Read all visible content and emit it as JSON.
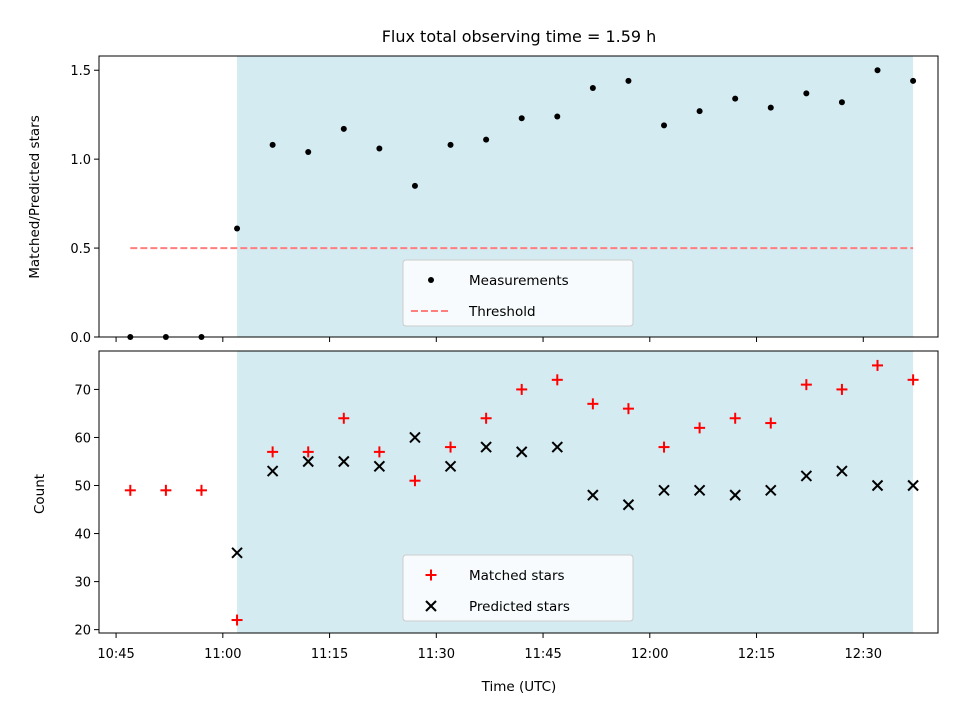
{
  "chart_data": [
    {
      "type": "scatter",
      "title": "Flux total observing time = 1.59 h",
      "ylabel": "Matched/Predicted stars",
      "xlabel": "",
      "ylim": [
        0,
        1.58
      ],
      "yticks": [
        0.0,
        0.5,
        1.0,
        1.5
      ],
      "ytick_labels": [
        "0.0",
        "0.5",
        "1.0",
        "1.5"
      ],
      "shaded_span": {
        "x_start": "11:02",
        "x_end": "12:37",
        "color": "#add8e6"
      },
      "series": [
        {
          "name": "Measurements",
          "marker": "dot",
          "color": "#000000",
          "x": [
            "10:47",
            "10:52",
            "10:57",
            "11:02",
            "11:07",
            "11:12",
            "11:17",
            "11:22",
            "11:27",
            "11:32",
            "11:37",
            "11:42",
            "11:47",
            "11:52",
            "11:57",
            "12:02",
            "12:07",
            "12:12",
            "12:17",
            "12:22",
            "12:27",
            "12:32",
            "12:37"
          ],
          "y": [
            0.0,
            0.0,
            0.0,
            0.61,
            1.08,
            1.04,
            1.17,
            1.06,
            0.85,
            1.08,
            1.11,
            1.23,
            1.24,
            1.4,
            1.44,
            1.19,
            1.27,
            1.34,
            1.29,
            1.37,
            1.32,
            1.5,
            1.44
          ]
        },
        {
          "name": "Threshold",
          "marker": "dashed-line",
          "color": "#ff7f7f",
          "x": [
            "10:47",
            "12:37"
          ],
          "y": [
            0.5,
            0.5
          ]
        }
      ],
      "legend": {
        "position": "lower center",
        "entries": [
          "Measurements",
          "Threshold"
        ]
      }
    },
    {
      "type": "scatter",
      "title": "",
      "xlabel": "Time (UTC)",
      "ylabel": "Count",
      "ylim": [
        19.3,
        78.0
      ],
      "yticks": [
        20,
        30,
        40,
        50,
        60,
        70
      ],
      "ytick_labels": [
        "20",
        "30",
        "40",
        "50",
        "60",
        "70"
      ],
      "xtick_labels": [
        "10:45",
        "11:00",
        "11:15",
        "11:30",
        "11:45",
        "12:00",
        "12:15",
        "12:30"
      ],
      "shaded_span": {
        "x_start": "11:02",
        "x_end": "12:37",
        "color": "#add8e6"
      },
      "series": [
        {
          "name": "Matched stars",
          "marker": "plus",
          "color": "#ff0000",
          "x": [
            "10:47",
            "10:52",
            "10:57",
            "11:02",
            "11:07",
            "11:12",
            "11:17",
            "11:22",
            "11:27",
            "11:32",
            "11:37",
            "11:42",
            "11:47",
            "11:52",
            "11:57",
            "12:02",
            "12:07",
            "12:12",
            "12:17",
            "12:22",
            "12:27",
            "12:32",
            "12:37"
          ],
          "y": [
            49,
            49,
            49,
            22,
            57,
            57,
            64,
            57,
            51,
            58,
            64,
            70,
            72,
            67,
            66,
            58,
            62,
            64,
            63,
            71,
            70,
            75,
            72
          ]
        },
        {
          "name": "Predicted stars",
          "marker": "x",
          "color": "#000000",
          "x": [
            "11:02",
            "11:07",
            "11:12",
            "11:17",
            "11:22",
            "11:27",
            "11:32",
            "11:37",
            "11:42",
            "11:47",
            "11:52",
            "11:57",
            "12:02",
            "12:07",
            "12:12",
            "12:17",
            "12:22",
            "12:27",
            "12:32",
            "12:37"
          ],
          "y": [
            36,
            53,
            55,
            55,
            54,
            60,
            54,
            58,
            57,
            58,
            48,
            46,
            49,
            49,
            48,
            49,
            52,
            53,
            50,
            50
          ]
        }
      ],
      "legend": {
        "position": "lower center",
        "entries": [
          "Matched stars",
          "Predicted stars"
        ]
      }
    }
  ]
}
